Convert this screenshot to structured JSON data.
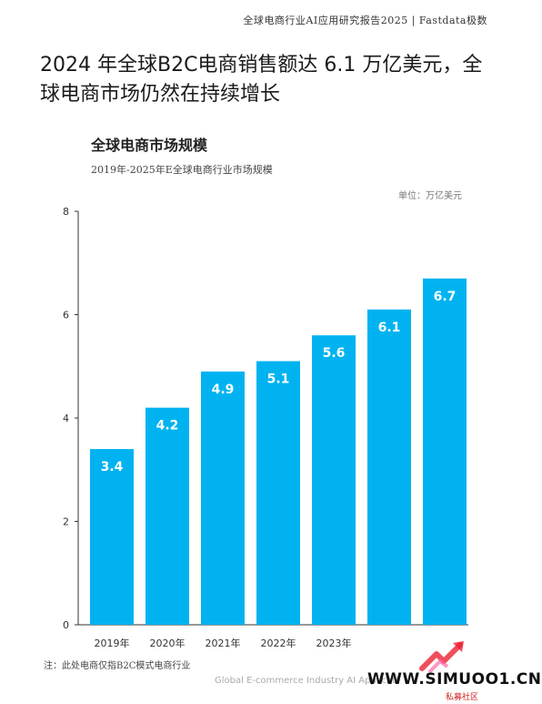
{
  "header": {
    "text": "全球电商行业AI应用研究报告2025 | Fastdata极数"
  },
  "headline": "2024 年全球B2C电商销售额达 6.1 万亿美元，全球电商市场仍然在持续增长",
  "footnote": "注：此处电商仅指B2C模式电商行业",
  "footer": "Global E-commerce Industry AI Applicati",
  "watermark": {
    "site": "WWW.SIMUOO1.CN",
    "sub": "私募社区"
  },
  "colors": {
    "bar": "#00B3F0",
    "label": "#ffffff",
    "axis": "#333333"
  },
  "chart_data": {
    "type": "bar",
    "title": "全球电商市场规模",
    "subtitle": "2019年-2025年E全球电商行业市场规模",
    "unit": "单位：万亿美元",
    "categories": [
      "2019年",
      "2020年",
      "2021年",
      "2022年",
      "2023年",
      "",
      ""
    ],
    "values": [
      3.4,
      4.2,
      4.9,
      5.1,
      5.6,
      6.1,
      6.7
    ],
    "data_labels": [
      "3.4",
      "4.2",
      "4.9",
      "5.1",
      "5.6",
      "6.1",
      "6.7"
    ],
    "ylim": [
      0,
      8
    ],
    "yticks": [
      "0",
      "2",
      "4",
      "6",
      "8"
    ],
    "grid": false,
    "legend": "none"
  }
}
